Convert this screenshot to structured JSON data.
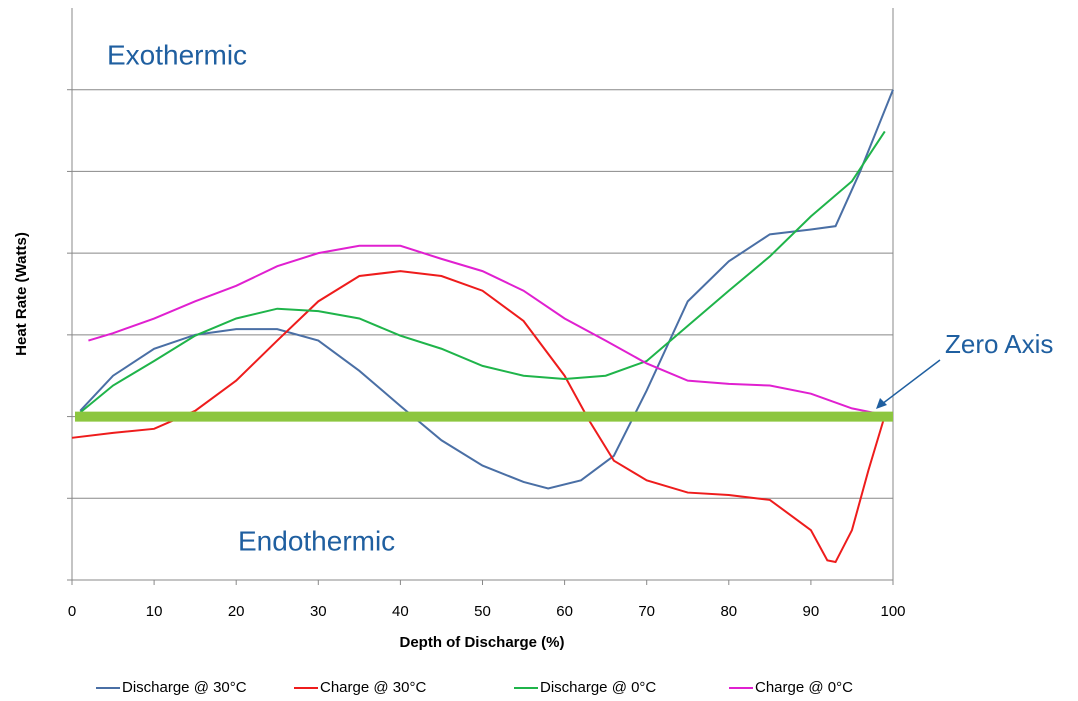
{
  "chart_data": {
    "type": "line",
    "x_label": "Depth of Discharge (%)",
    "y_label": "Heat Rate (Watts)",
    "annotations": [
      "Exothermic",
      "Endothermic",
      "Zero Axis"
    ],
    "xlim": [
      0,
      100
    ],
    "xticks": [
      0,
      10,
      20,
      30,
      40,
      50,
      60,
      70,
      80,
      90,
      100
    ],
    "ylim": [
      -2,
      5
    ],
    "yticks": [
      -2,
      -1,
      0,
      1,
      2,
      3,
      4
    ],
    "ytick_labels_shown": false,
    "grid": true,
    "legend": "bottom",
    "series": [
      {
        "name": "Discharge @ 30°C",
        "color": "#4a6fa5",
        "x": [
          1,
          5,
          10,
          15,
          20,
          25,
          30,
          35,
          40,
          45,
          50,
          55,
          58,
          62,
          66,
          70,
          75,
          80,
          85,
          90,
          93,
          96,
          100
        ],
        "values": [
          0.07,
          0.5,
          0.83,
          1.0,
          1.07,
          1.07,
          0.93,
          0.56,
          0.13,
          -0.29,
          -0.6,
          -0.8,
          -0.88,
          -0.78,
          -0.48,
          0.32,
          1.41,
          1.9,
          2.23,
          2.29,
          2.33,
          3.0,
          4.0
        ]
      },
      {
        "name": "Charge @ 30°C",
        "color": "#ee1c1c",
        "x": [
          0,
          5,
          10,
          15,
          20,
          25,
          30,
          35,
          40,
          45,
          50,
          55,
          60,
          63,
          66,
          70,
          75,
          80,
          85,
          90,
          92,
          93,
          95,
          97,
          99
        ],
        "values": [
          -0.26,
          -0.2,
          -0.15,
          0.07,
          0.44,
          0.93,
          1.41,
          1.72,
          1.78,
          1.72,
          1.54,
          1.17,
          0.5,
          -0.05,
          -0.54,
          -0.78,
          -0.93,
          -0.96,
          -1.02,
          -1.39,
          -1.76,
          -1.78,
          -1.39,
          -0.66,
          0.01
        ]
      },
      {
        "name": "Discharge @ 0°C",
        "color": "#1fb44a",
        "x": [
          1,
          5,
          10,
          15,
          20,
          25,
          30,
          35,
          40,
          45,
          50,
          55,
          60,
          65,
          70,
          75,
          80,
          85,
          90,
          95,
          99
        ],
        "values": [
          0.05,
          0.38,
          0.68,
          0.99,
          1.2,
          1.32,
          1.29,
          1.2,
          0.99,
          0.83,
          0.62,
          0.5,
          0.46,
          0.5,
          0.68,
          1.11,
          1.54,
          1.96,
          2.45,
          2.88,
          3.49
        ]
      },
      {
        "name": "Charge @ 0°C",
        "color": "#e020d0",
        "x": [
          2,
          5,
          10,
          15,
          20,
          25,
          30,
          35,
          40,
          45,
          50,
          55,
          60,
          65,
          70,
          75,
          80,
          85,
          90,
          95,
          98
        ],
        "values": [
          0.93,
          1.02,
          1.2,
          1.41,
          1.6,
          1.84,
          2.0,
          2.09,
          2.09,
          1.93,
          1.78,
          1.54,
          1.2,
          0.93,
          0.65,
          0.44,
          0.4,
          0.38,
          0.28,
          0.1,
          0.04
        ]
      }
    ],
    "zero_axis": {
      "value": 0,
      "color": "#8cc63f"
    }
  }
}
